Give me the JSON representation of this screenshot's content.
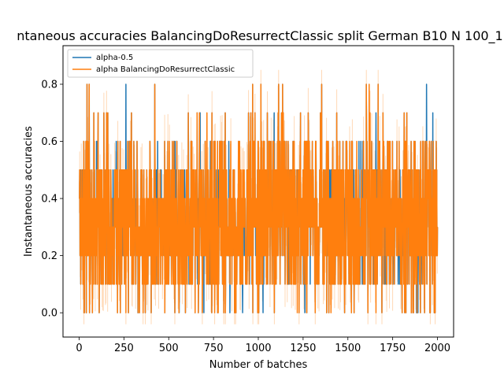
{
  "chart_data": {
    "type": "line",
    "title": "ntaneous accuracies BalancingDoResurrectClassic split German B10 N 100_1",
    "xlabel": "Number of batches",
    "ylabel": "Instantaneous accuracies",
    "xlim": [
      -90,
      2090
    ],
    "ylim": [
      -0.085,
      0.935
    ],
    "xticks": [
      0,
      250,
      500,
      750,
      1000,
      1250,
      1500,
      1750,
      2000
    ],
    "xtick_labels": [
      "0",
      "250",
      "500",
      "750",
      "1000",
      "1250",
      "1500",
      "1750",
      "2000"
    ],
    "yticks": [
      0.0,
      0.2,
      0.4,
      0.6,
      0.8
    ],
    "ytick_labels": [
      "0.0",
      "0.2",
      "0.4",
      "0.6",
      "0.8"
    ],
    "grid": false,
    "legend_position": "top-left",
    "x_range": [
      0,
      2000
    ],
    "points_per_series": 2000,
    "value_levels": [
      0.0,
      0.1,
      0.2,
      0.3,
      0.4,
      0.5,
      0.6,
      0.7,
      0.8
    ],
    "series": [
      {
        "name": "alpha-0.5",
        "color": "#1f77b4"
      },
      {
        "name": "alpha BalancingDoResurrectClassic",
        "color": "#ff7f0e"
      }
    ]
  }
}
